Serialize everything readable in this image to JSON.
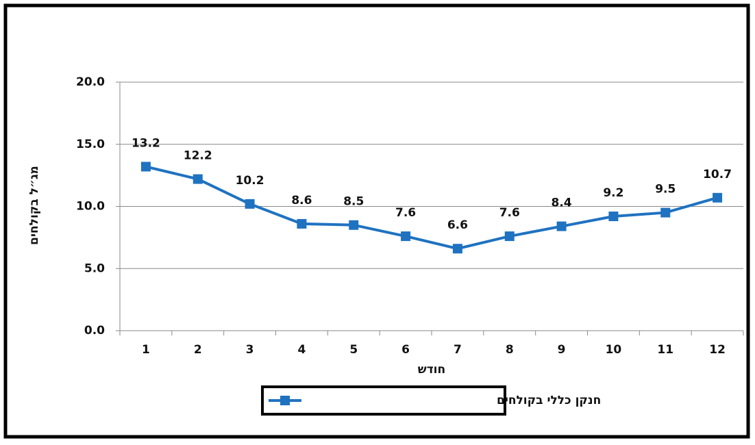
{
  "chart_data": {
    "type": "line",
    "y_label": "מג״ל בקולחים",
    "x_label": "חודש",
    "categories": [
      "1",
      "2",
      "3",
      "4",
      "5",
      "6",
      "7",
      "8",
      "9",
      "10",
      "11",
      "12"
    ],
    "series": [
      {
        "name": "חנקן כללי בקולחים",
        "color": "#1f72c0",
        "values": [
          13.2,
          12.2,
          10.2,
          8.6,
          8.5,
          7.6,
          6.6,
          7.6,
          8.4,
          9.2,
          9.5,
          10.7
        ]
      }
    ],
    "ylim": [
      0,
      20
    ],
    "yticks": [
      {
        "value": 0,
        "label": "0.0"
      },
      {
        "value": 5,
        "label": "5.0"
      },
      {
        "value": 10,
        "label": "10.0"
      },
      {
        "value": 15,
        "label": "15.0"
      },
      {
        "value": 20,
        "label": "20.0"
      }
    ],
    "grid": true,
    "legend": "bottom"
  }
}
